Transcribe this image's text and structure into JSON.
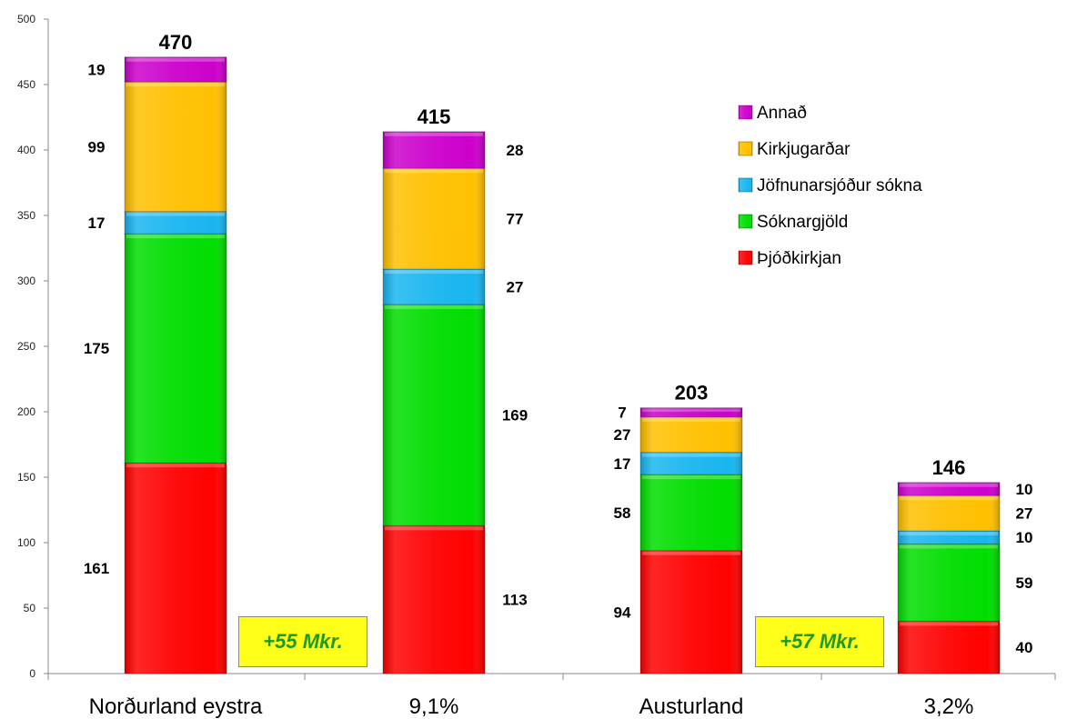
{
  "chart_data": {
    "type": "bar",
    "stacked": true,
    "categories": [
      "Norðurland eystra",
      "9,1%",
      "Austurland",
      "3,2%"
    ],
    "ylim": [
      0,
      500
    ],
    "yticks": [
      0,
      50,
      100,
      150,
      200,
      250,
      300,
      350,
      400,
      450,
      500
    ],
    "series": [
      {
        "name": "Þjóðkirkjan",
        "color": "#ff0000",
        "values": [
          161,
          113,
          94,
          40
        ]
      },
      {
        "name": "Sóknargjöld",
        "color": "#00dd00",
        "values": [
          175,
          169,
          58,
          59
        ]
      },
      {
        "name": "Jöfnunarsjóður sókna",
        "color": "#19b5f0",
        "values": [
          17,
          27,
          17,
          10
        ]
      },
      {
        "name": "Kirkjugarðar",
        "color": "#ffc000",
        "values": [
          99,
          77,
          27,
          27
        ]
      },
      {
        "name": "Annað",
        "color": "#cc00cc",
        "values": [
          19,
          28,
          7,
          10
        ]
      }
    ],
    "totals": [
      "470",
      "415",
      "203",
      "146"
    ],
    "legend_position": "right",
    "annotations": [
      "+55 Mkr.",
      "+57 Mkr."
    ],
    "grid": false
  }
}
